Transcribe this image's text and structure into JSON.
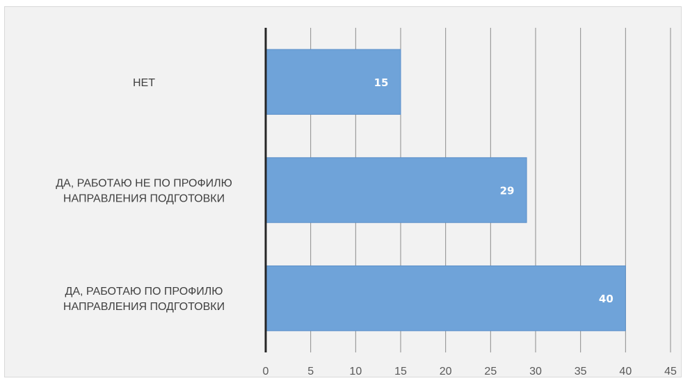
{
  "chart_data": {
    "type": "bar",
    "orientation": "horizontal",
    "categories": [
      [
        "НЕТ"
      ],
      [
        "ДА, РАБОТАЮ НЕ ПО ПРОФИЛЮ",
        "НАПРАВЛЕНИЯ ПОДГОТОВКИ"
      ],
      [
        "ДА, РАБОТАЮ ПО ПРОФИЛЮ",
        "НАПРАВЛЕНИЯ ПОДГОТОВКИ"
      ]
    ],
    "values": [
      15,
      29,
      40
    ],
    "xlim": [
      0,
      45
    ],
    "xticks": [
      0,
      5,
      10,
      15,
      20,
      25,
      30,
      35,
      40,
      45
    ],
    "title": "",
    "xlabel": "",
    "ylabel": "",
    "grid": "vertical",
    "legend": "none",
    "colors": {
      "bar_fill": "#6fa3d9",
      "bar_stroke": "#5b8fc9",
      "gridline": "#8c8c8c",
      "axis": "#262626",
      "background": "#f2f2f2"
    }
  }
}
